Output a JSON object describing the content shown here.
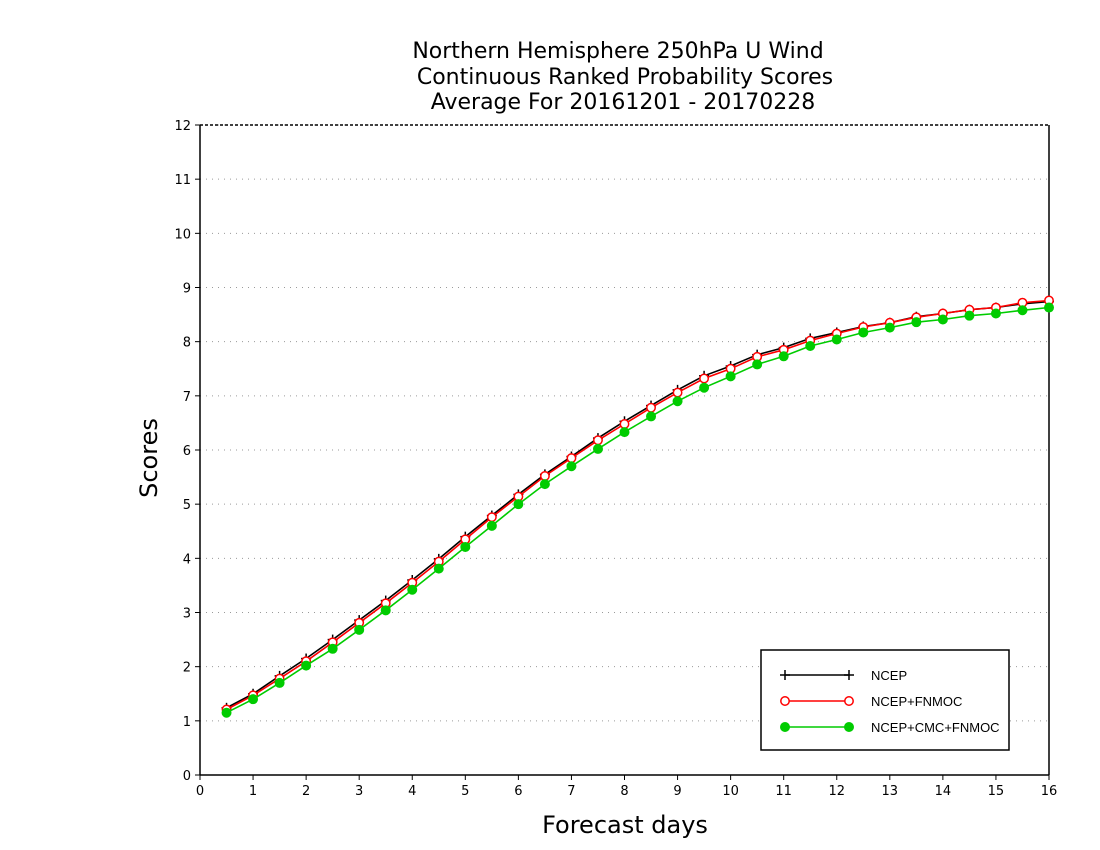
{
  "chart_data": {
    "type": "line",
    "title": [
      "Northern Hemisphere 250hPa U Wind",
      "Continuous Ranked Probability Scores",
      "Average For 20161201 - 20170228"
    ],
    "xlabel": "Forecast days",
    "ylabel": "Scores",
    "xlim": [
      0,
      16
    ],
    "ylim": [
      0,
      12
    ],
    "xticks": [
      0,
      1,
      2,
      3,
      4,
      5,
      6,
      7,
      8,
      9,
      10,
      11,
      12,
      13,
      14,
      15,
      16
    ],
    "yticks": [
      0,
      1,
      2,
      3,
      4,
      5,
      6,
      7,
      8,
      9,
      10,
      11,
      12
    ],
    "grid": true,
    "legend_position": "bottom-right",
    "x": [
      0.5,
      1,
      1.5,
      2,
      2.5,
      3,
      3.5,
      4,
      4.5,
      5,
      5.5,
      6,
      6.5,
      7,
      7.5,
      8,
      8.5,
      9,
      9.5,
      10,
      10.5,
      11,
      11.5,
      12,
      12.5,
      13,
      13.5,
      14,
      14.5,
      15,
      15.5,
      16
    ],
    "series": [
      {
        "name": "NCEP",
        "color": "#000000",
        "marker": "plus",
        "values": [
          1.24,
          1.5,
          1.83,
          2.15,
          2.5,
          2.86,
          3.22,
          3.6,
          3.99,
          4.4,
          4.79,
          5.18,
          5.55,
          5.88,
          6.22,
          6.53,
          6.82,
          7.11,
          7.37,
          7.55,
          7.76,
          7.89,
          8.06,
          8.17,
          8.28,
          8.35,
          8.46,
          8.52,
          8.59,
          8.63,
          8.7,
          8.74
        ]
      },
      {
        "name": "NCEP+FNMOC",
        "color": "#ff0000",
        "marker": "open-circle",
        "values": [
          1.21,
          1.47,
          1.78,
          2.1,
          2.45,
          2.81,
          3.17,
          3.55,
          3.94,
          4.35,
          4.76,
          5.14,
          5.52,
          5.85,
          6.18,
          6.48,
          6.78,
          7.06,
          7.32,
          7.5,
          7.72,
          7.85,
          8.02,
          8.15,
          8.27,
          8.35,
          8.45,
          8.52,
          8.59,
          8.63,
          8.72,
          8.76
        ]
      },
      {
        "name": "NCEP+CMC+FNMOC",
        "color": "#00cc00",
        "marker": "filled-circle",
        "values": [
          1.15,
          1.4,
          1.7,
          2.02,
          2.33,
          2.68,
          3.04,
          3.42,
          3.81,
          4.21,
          4.6,
          5.0,
          5.37,
          5.7,
          6.02,
          6.33,
          6.62,
          6.9,
          7.15,
          7.36,
          7.58,
          7.73,
          7.92,
          8.04,
          8.17,
          8.26,
          8.36,
          8.41,
          8.48,
          8.52,
          8.58,
          8.63
        ]
      }
    ]
  }
}
